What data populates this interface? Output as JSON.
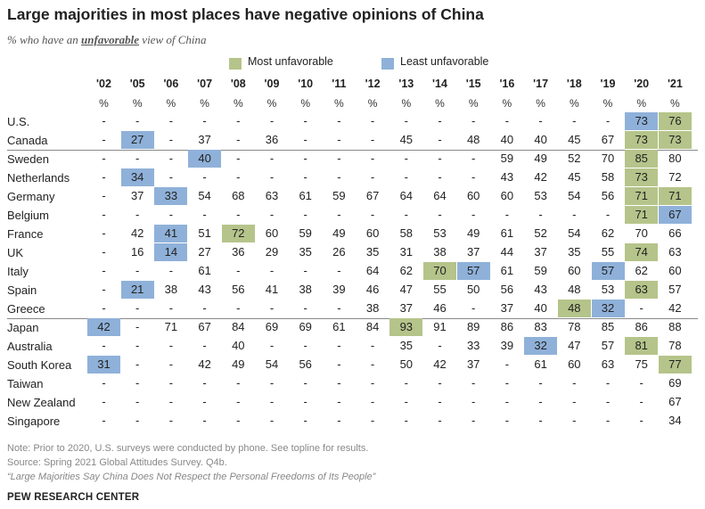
{
  "header": {
    "title": "Large majorities in most places have negative opinions of China",
    "subtitle_pre": "% who have an ",
    "subtitle_emph": "unfavorable",
    "subtitle_post": " view of China"
  },
  "legend": {
    "most_label": "Most unfavorable",
    "least_label": "Least unfavorable",
    "most_color": "#b5c48a",
    "least_color": "#8fb1d9"
  },
  "chart_data": {
    "type": "table",
    "title": "Large majorities in most places have negative opinions of China",
    "subtitle": "% who have an unfavorable view of China",
    "columns": [
      "'02",
      "'05",
      "'06",
      "'07",
      "'08",
      "'09",
      "'10",
      "'11",
      "'12",
      "'13",
      "'14",
      "'15",
      "'16",
      "'17",
      "'18",
      "'19",
      "'20",
      "'21"
    ],
    "unit_label": "%",
    "rows": [
      {
        "country": "U.S.",
        "values": [
          "-",
          "-",
          "-",
          "-",
          "-",
          "-",
          "-",
          "-",
          "-",
          "-",
          "-",
          "-",
          "-",
          "-",
          "-",
          "-",
          "73",
          "76"
        ],
        "most": [
          17
        ],
        "least": [
          16
        ],
        "group": 1
      },
      {
        "country": "Canada",
        "values": [
          "-",
          "27",
          "-",
          "37",
          "-",
          "36",
          "-",
          "-",
          "-",
          "45",
          "-",
          "48",
          "40",
          "40",
          "45",
          "67",
          "73",
          "73"
        ],
        "most": [
          16,
          17
        ],
        "least": [
          1
        ],
        "group": 1
      },
      {
        "country": "Sweden",
        "values": [
          "-",
          "-",
          "-",
          "40",
          "-",
          "-",
          "-",
          "-",
          "-",
          "-",
          "-",
          "-",
          "59",
          "49",
          "52",
          "70",
          "85",
          "80"
        ],
        "most": [
          16
        ],
        "least": [
          3
        ],
        "group": 2
      },
      {
        "country": "Netherlands",
        "values": [
          "-",
          "34",
          "-",
          "-",
          "-",
          "-",
          "-",
          "-",
          "-",
          "-",
          "-",
          "-",
          "43",
          "42",
          "45",
          "58",
          "73",
          "72"
        ],
        "most": [
          16
        ],
        "least": [
          1
        ],
        "group": 2
      },
      {
        "country": "Germany",
        "values": [
          "-",
          "37",
          "33",
          "54",
          "68",
          "63",
          "61",
          "59",
          "67",
          "64",
          "64",
          "60",
          "60",
          "53",
          "54",
          "56",
          "71",
          "71"
        ],
        "most": [
          16,
          17
        ],
        "least": [
          2
        ],
        "group": 2
      },
      {
        "country": "Belgium",
        "values": [
          "-",
          "-",
          "-",
          "-",
          "-",
          "-",
          "-",
          "-",
          "-",
          "-",
          "-",
          "-",
          "-",
          "-",
          "-",
          "-",
          "71",
          "67"
        ],
        "most": [
          16
        ],
        "least": [
          17
        ],
        "group": 2
      },
      {
        "country": "France",
        "values": [
          "-",
          "42",
          "41",
          "51",
          "72",
          "60",
          "59",
          "49",
          "60",
          "58",
          "53",
          "49",
          "61",
          "52",
          "54",
          "62",
          "70",
          "66"
        ],
        "most": [
          4
        ],
        "least": [
          2
        ],
        "group": 2
      },
      {
        "country": "UK",
        "values": [
          "-",
          "16",
          "14",
          "27",
          "36",
          "29",
          "35",
          "26",
          "35",
          "31",
          "38",
          "37",
          "44",
          "37",
          "35",
          "55",
          "74",
          "63"
        ],
        "most": [
          16
        ],
        "least": [
          2
        ],
        "group": 2
      },
      {
        "country": "Italy",
        "values": [
          "-",
          "-",
          "-",
          "61",
          "-",
          "-",
          "-",
          "-",
          "64",
          "62",
          "70",
          "57",
          "61",
          "59",
          "60",
          "57",
          "62",
          "60"
        ],
        "most": [
          10
        ],
        "least": [
          11,
          15
        ],
        "group": 2
      },
      {
        "country": "Spain",
        "values": [
          "-",
          "21",
          "38",
          "43",
          "56",
          "41",
          "38",
          "39",
          "46",
          "47",
          "55",
          "50",
          "56",
          "43",
          "48",
          "53",
          "63",
          "57"
        ],
        "most": [
          16
        ],
        "least": [
          1
        ],
        "group": 2
      },
      {
        "country": "Greece",
        "values": [
          "-",
          "-",
          "-",
          "-",
          "-",
          "-",
          "-",
          "-",
          "38",
          "37",
          "46",
          "-",
          "37",
          "40",
          "48",
          "32",
          "-",
          "42"
        ],
        "most": [
          14
        ],
        "least": [
          15
        ],
        "group": 2
      },
      {
        "country": "Japan",
        "values": [
          "42",
          "-",
          "71",
          "67",
          "84",
          "69",
          "69",
          "61",
          "84",
          "93",
          "91",
          "89",
          "86",
          "83",
          "78",
          "85",
          "86",
          "88"
        ],
        "most": [
          9
        ],
        "least": [
          0
        ],
        "group": 3
      },
      {
        "country": "Australia",
        "values": [
          "-",
          "-",
          "-",
          "-",
          "40",
          "-",
          "-",
          "-",
          "-",
          "35",
          "-",
          "33",
          "39",
          "32",
          "47",
          "57",
          "81",
          "78"
        ],
        "most": [
          16
        ],
        "least": [
          13
        ],
        "group": 3
      },
      {
        "country": "South Korea",
        "values": [
          "31",
          "-",
          "-",
          "42",
          "49",
          "54",
          "56",
          "-",
          "-",
          "50",
          "42",
          "37",
          "-",
          "61",
          "60",
          "63",
          "75",
          "77"
        ],
        "most": [
          17
        ],
        "least": [
          0
        ],
        "group": 3
      },
      {
        "country": "Taiwan",
        "values": [
          "-",
          "-",
          "-",
          "-",
          "-",
          "-",
          "-",
          "-",
          "-",
          "-",
          "-",
          "-",
          "-",
          "-",
          "-",
          "-",
          "-",
          "69"
        ],
        "most": [],
        "least": [],
        "group": 3
      },
      {
        "country": "New Zealand",
        "values": [
          "-",
          "-",
          "-",
          "-",
          "-",
          "-",
          "-",
          "-",
          "-",
          "-",
          "-",
          "-",
          "-",
          "-",
          "-",
          "-",
          "-",
          "67"
        ],
        "most": [],
        "least": [],
        "group": 3
      },
      {
        "country": "Singapore",
        "values": [
          "-",
          "-",
          "-",
          "-",
          "-",
          "-",
          "-",
          "-",
          "-",
          "-",
          "-",
          "-",
          "-",
          "-",
          "-",
          "-",
          "-",
          "34"
        ],
        "most": [],
        "least": [],
        "group": 3
      }
    ]
  },
  "footer": {
    "note": "Note: Prior to 2020, U.S. surveys were conducted by phone. See topline for results.",
    "source": "Source: Spring 2021 Global Attitudes Survey. Q4b.",
    "report": "“Large Majorities Say China Does Not Respect the Personal Freedoms of Its People”",
    "brand": "PEW RESEARCH CENTER"
  }
}
